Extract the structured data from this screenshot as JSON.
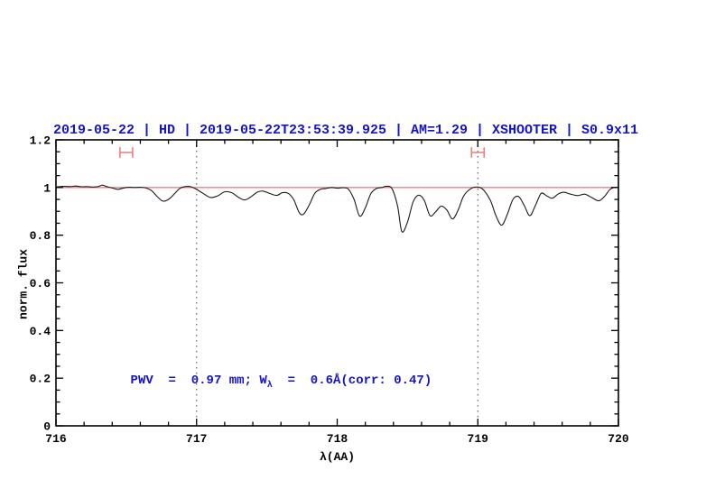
{
  "figure": {
    "background": "#ffffff",
    "frame_color": "#000000",
    "accent_blue": "#1414cd",
    "accent_red": "#f08080",
    "dotted_line_color": "#444444",
    "spectrum_color": "#1a1a1a"
  },
  "chart_data": {
    "type": "line",
    "title": "2019-05-22 | HD | 2019-05-22T23:53:39.925 | AM=1.29 | XSHOOTER | S0.9x11",
    "xlabel": "λ(AA)",
    "ylabel": "norm. flux",
    "xlim": [
      716,
      720
    ],
    "ylim": [
      0,
      1.2
    ],
    "grid": false,
    "x_major_ticks": [
      716,
      717,
      718,
      719,
      720
    ],
    "x_tick_labels": [
      "716",
      "717",
      "718",
      "719",
      "720"
    ],
    "x_minor_step": 0.2,
    "y_major_ticks": [
      0,
      0.2,
      0.4,
      0.6,
      0.8,
      1,
      1.2
    ],
    "y_tick_labels": [
      "0",
      "0.2",
      "0.4",
      "0.6",
      "0.8",
      "1",
      "1.2"
    ],
    "y_minor_step": 0.05,
    "continuum_line": {
      "y": 1.0,
      "color": "#f08080"
    },
    "vertical_dotted_lines": [
      717,
      719
    ],
    "telluric_markers": [
      {
        "x": 716.5,
        "xerr": 0.045,
        "y": 1.147,
        "cap": 0.022
      },
      {
        "x": 719.0,
        "xerr": 0.045,
        "y": 1.147,
        "cap": 0.022
      }
    ],
    "annotation": {
      "text_main": "PWV  =  0.97 mm; W",
      "text_sub": "λ",
      "text_tail": "  =  0.6Å(corr: 0.47)",
      "x": 716.53,
      "y": 0.2,
      "color": "#1414cd"
    },
    "series": [
      {
        "name": "normalized spectrum",
        "color": "#1a1a1a",
        "points": [
          [
            716.0,
            1.002
          ],
          [
            716.05,
            1.005
          ],
          [
            716.1,
            1.004
          ],
          [
            716.14,
            1.006
          ],
          [
            716.18,
            1.003
          ],
          [
            716.22,
            1.004
          ],
          [
            716.26,
            1.002
          ],
          [
            716.3,
            1.004
          ],
          [
            716.33,
            1.01
          ],
          [
            716.36,
            1.004
          ],
          [
            716.4,
            0.998
          ],
          [
            716.44,
            0.992
          ],
          [
            716.48,
            0.998
          ],
          [
            716.52,
            1.001
          ],
          [
            716.56,
            1.0
          ],
          [
            716.6,
            1.001
          ],
          [
            716.64,
            0.998
          ],
          [
            716.68,
            0.987
          ],
          [
            716.72,
            0.962
          ],
          [
            716.76,
            0.943
          ],
          [
            716.8,
            0.95
          ],
          [
            716.84,
            0.972
          ],
          [
            716.88,
            0.996
          ],
          [
            716.92,
            1.004
          ],
          [
            716.96,
            1.003
          ],
          [
            717.0,
            0.992
          ],
          [
            717.05,
            0.974
          ],
          [
            717.1,
            0.958
          ],
          [
            717.15,
            0.965
          ],
          [
            717.2,
            0.982
          ],
          [
            717.25,
            0.978
          ],
          [
            717.3,
            0.958
          ],
          [
            717.34,
            0.948
          ],
          [
            717.38,
            0.958
          ],
          [
            717.43,
            0.98
          ],
          [
            717.47,
            0.985
          ],
          [
            717.52,
            0.975
          ],
          [
            717.57,
            0.967
          ],
          [
            717.61,
            0.978
          ],
          [
            717.65,
            0.976
          ],
          [
            717.69,
            0.95
          ],
          [
            717.73,
            0.895
          ],
          [
            717.76,
            0.888
          ],
          [
            717.8,
            0.925
          ],
          [
            717.84,
            0.975
          ],
          [
            717.88,
            0.992
          ],
          [
            717.92,
            0.996
          ],
          [
            717.96,
            1.0
          ],
          [
            718.0,
            0.997
          ],
          [
            718.04,
            0.999
          ],
          [
            718.08,
            0.993
          ],
          [
            718.12,
            0.95
          ],
          [
            718.16,
            0.88
          ],
          [
            718.2,
            0.915
          ],
          [
            718.24,
            0.975
          ],
          [
            718.28,
            0.996
          ],
          [
            718.32,
            1.0
          ],
          [
            718.35,
            1.005
          ],
          [
            718.39,
            0.995
          ],
          [
            718.43,
            0.92
          ],
          [
            718.46,
            0.815
          ],
          [
            718.5,
            0.855
          ],
          [
            718.54,
            0.94
          ],
          [
            718.58,
            0.968
          ],
          [
            718.62,
            0.945
          ],
          [
            718.66,
            0.882
          ],
          [
            718.7,
            0.898
          ],
          [
            718.74,
            0.922
          ],
          [
            718.78,
            0.905
          ],
          [
            718.82,
            0.868
          ],
          [
            718.86,
            0.905
          ],
          [
            718.9,
            0.965
          ],
          [
            718.95,
            0.995
          ],
          [
            719.0,
            1.002
          ],
          [
            719.04,
            0.99
          ],
          [
            719.09,
            0.945
          ],
          [
            719.13,
            0.88
          ],
          [
            719.17,
            0.842
          ],
          [
            719.21,
            0.888
          ],
          [
            719.25,
            0.95
          ],
          [
            719.29,
            0.962
          ],
          [
            719.33,
            0.925
          ],
          [
            719.37,
            0.882
          ],
          [
            719.41,
            0.925
          ],
          [
            719.45,
            0.975
          ],
          [
            719.49,
            0.965
          ],
          [
            719.53,
            0.955
          ],
          [
            719.57,
            0.972
          ],
          [
            719.61,
            0.98
          ],
          [
            719.66,
            0.972
          ],
          [
            719.71,
            0.966
          ],
          [
            719.76,
            0.972
          ],
          [
            719.81,
            0.958
          ],
          [
            719.86,
            0.944
          ],
          [
            719.9,
            0.962
          ],
          [
            719.94,
            0.992
          ],
          [
            719.97,
            1.0
          ],
          [
            720.0,
            1.0
          ]
        ]
      }
    ]
  }
}
